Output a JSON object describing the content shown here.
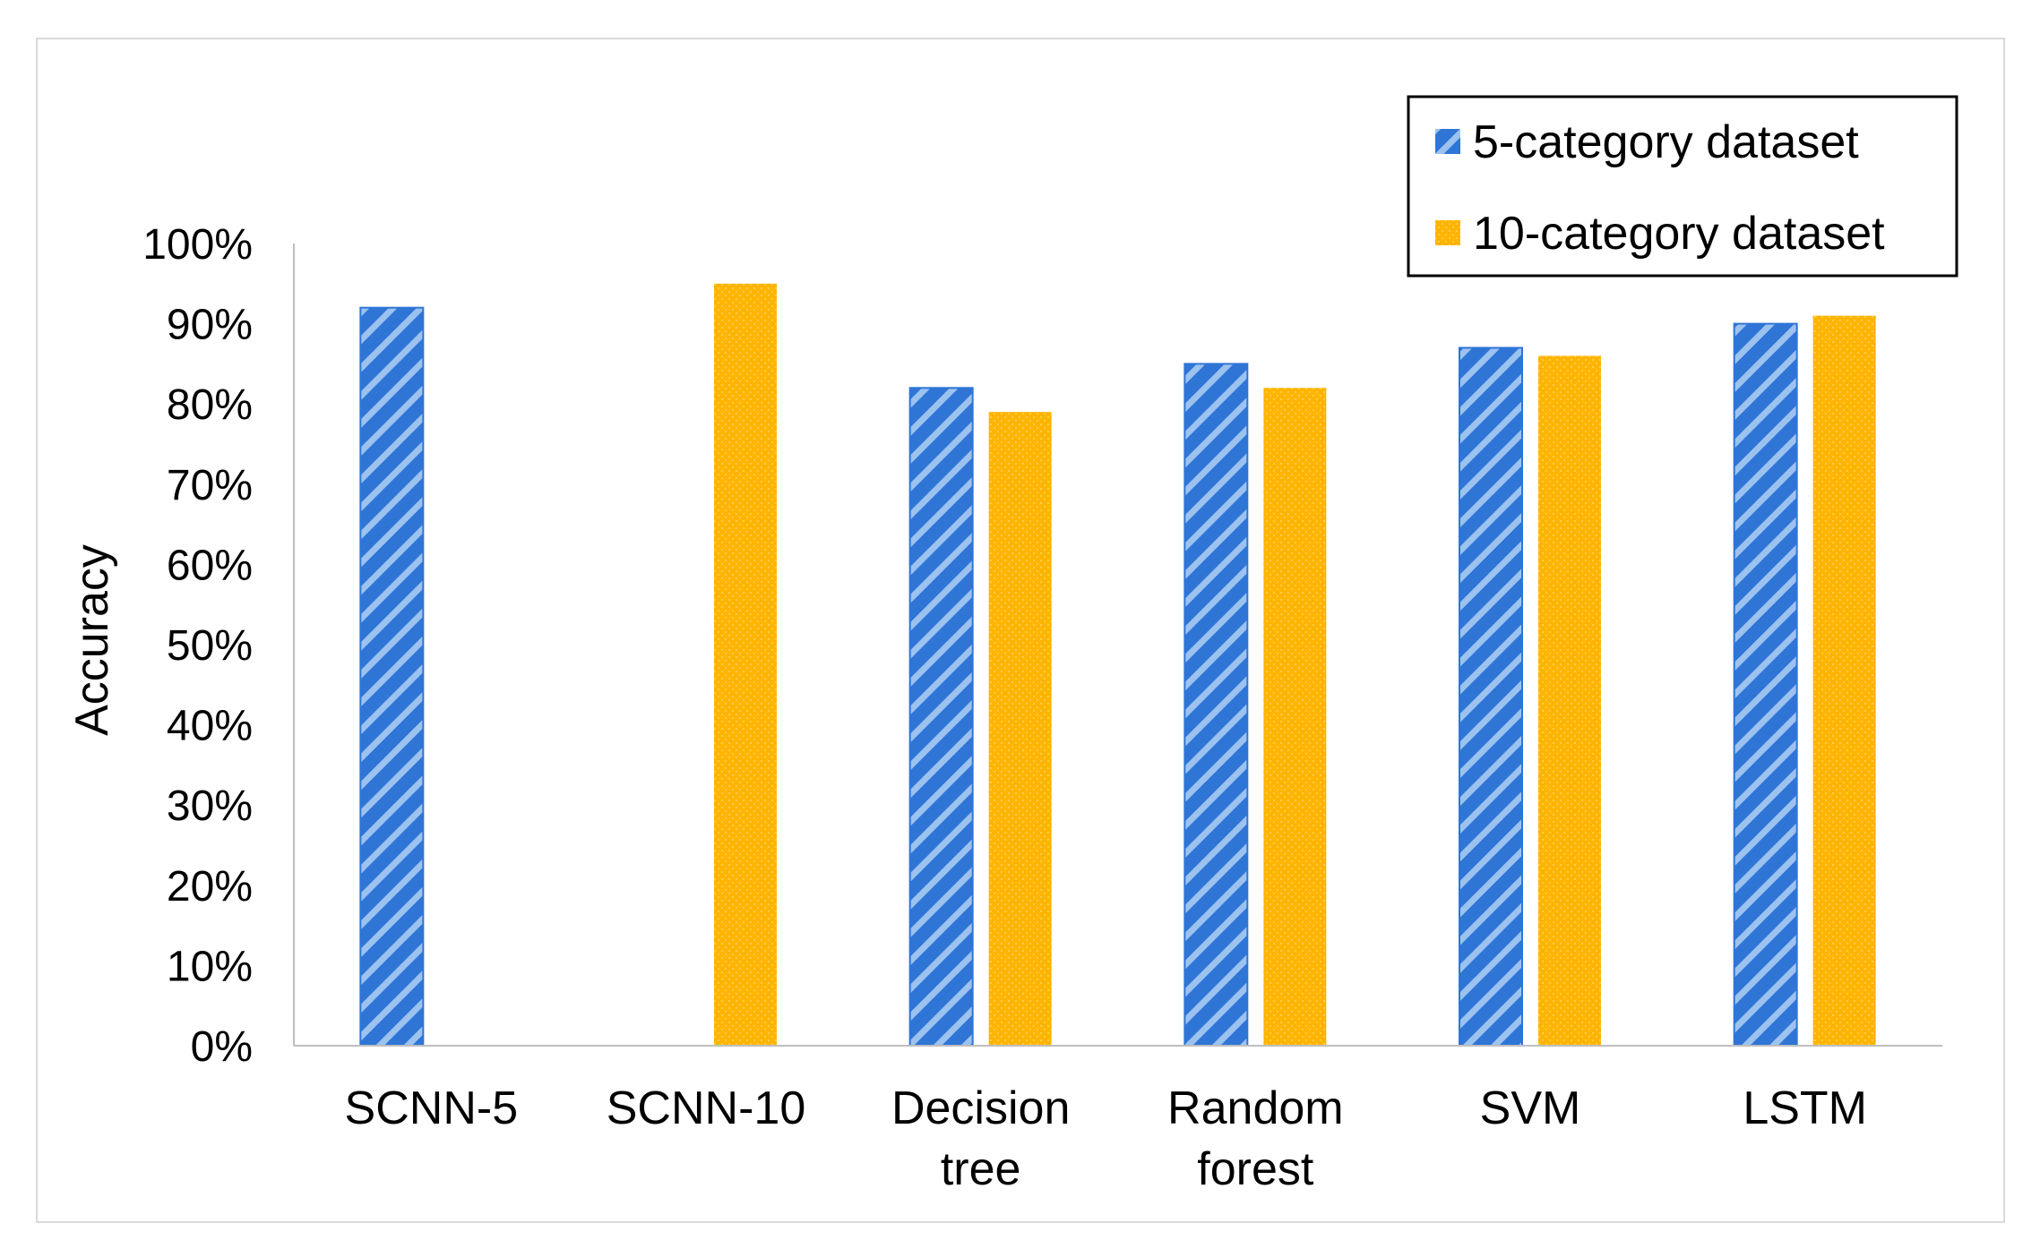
{
  "chart_data": {
    "type": "bar",
    "title": "",
    "xlabel": "",
    "ylabel": "Accuracy",
    "ylim": [
      0,
      100
    ],
    "yticks": [
      "0%",
      "10%",
      "20%",
      "30%",
      "40%",
      "50%",
      "60%",
      "70%",
      "80%",
      "90%",
      "100%"
    ],
    "categories": [
      [
        "SCNN-5"
      ],
      [
        "SCNN-10"
      ],
      [
        "Decision",
        "tree"
      ],
      [
        "Random",
        "forest"
      ],
      [
        "SVM"
      ],
      [
        "LSTM"
      ]
    ],
    "series": [
      {
        "name": "5-category dataset",
        "color": "#2f75d6",
        "pattern": "diagonal-stripes",
        "values": [
          92,
          null,
          82,
          85,
          87,
          90
        ]
      },
      {
        "name": "10-category dataset",
        "color": "#ffb400",
        "pattern": "dots",
        "values": [
          null,
          95,
          79,
          82,
          86,
          91
        ]
      }
    ],
    "legend_position": "top-right",
    "grid": false
  }
}
